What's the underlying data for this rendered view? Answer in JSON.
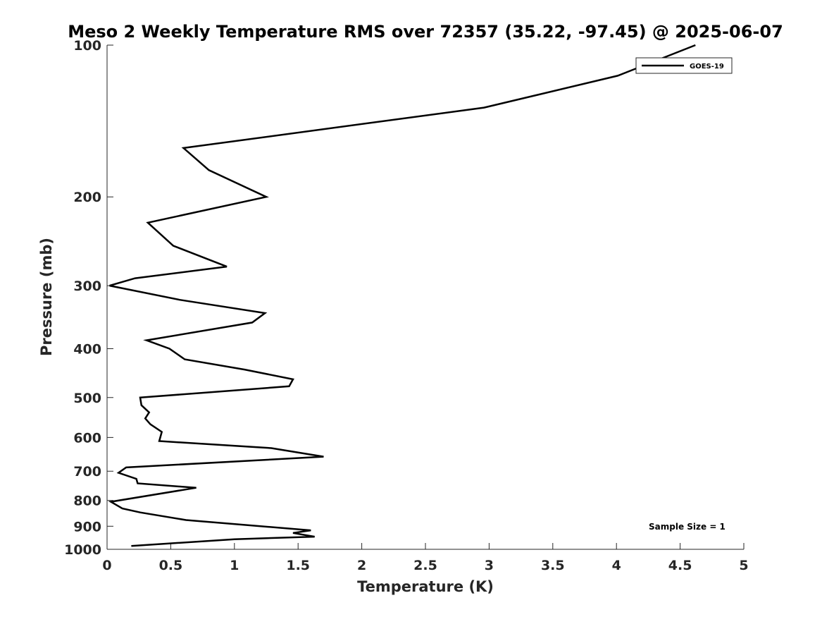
{
  "chart_data": {
    "type": "line",
    "title": "Meso 2 Weekly Temperature RMS over 72357 (35.22, -97.45) @ 2025-06-07",
    "xlabel": "Temperature (K)",
    "ylabel": "Pressure (mb)",
    "xlim": [
      0,
      5
    ],
    "ylim": [
      100,
      1000
    ],
    "y_scale": "log",
    "y_reversed": true,
    "x_ticks": [
      0,
      0.5,
      1,
      1.5,
      2,
      2.5,
      3,
      3.5,
      4,
      4.5,
      5
    ],
    "x_tick_labels": [
      "0",
      "0.5",
      "1",
      "1.5",
      "2",
      "2.5",
      "3",
      "3.5",
      "4",
      "4.5",
      "5"
    ],
    "y_ticks": [
      100,
      200,
      300,
      400,
      500,
      600,
      700,
      800,
      900,
      1000
    ],
    "y_tick_labels": [
      "100",
      "200",
      "300",
      "400",
      "500",
      "600",
      "700",
      "800",
      "900",
      "1000"
    ],
    "grid": false,
    "legend": {
      "position": "top-right",
      "entries": [
        "GOES-19"
      ]
    },
    "annotation": "Sample Size = 1",
    "series": [
      {
        "name": "GOES-19",
        "color": "#000000",
        "points": [
          [
            4.62,
            100
          ],
          [
            4.01,
            115
          ],
          [
            2.96,
            133
          ],
          [
            0.6,
            160
          ],
          [
            0.8,
            177
          ],
          [
            1.25,
            200
          ],
          [
            0.32,
            225
          ],
          [
            0.52,
            250
          ],
          [
            0.94,
            275
          ],
          [
            0.22,
            290
          ],
          [
            0.02,
            300
          ],
          [
            0.57,
            320
          ],
          [
            1.24,
            340
          ],
          [
            1.14,
            355
          ],
          [
            0.31,
            385
          ],
          [
            0.49,
            400
          ],
          [
            0.61,
            420
          ],
          [
            1.08,
            440
          ],
          [
            1.46,
            460
          ],
          [
            1.43,
            475
          ],
          [
            0.26,
            500
          ],
          [
            0.27,
            518
          ],
          [
            0.33,
            535
          ],
          [
            0.3,
            550
          ],
          [
            0.34,
            565
          ],
          [
            0.43,
            585
          ],
          [
            0.41,
            610
          ],
          [
            1.29,
            630
          ],
          [
            1.7,
            655
          ],
          [
            0.15,
            688
          ],
          [
            0.09,
            705
          ],
          [
            0.23,
            725
          ],
          [
            0.24,
            740
          ],
          [
            0.7,
            755
          ],
          [
            0.03,
            805
          ],
          [
            0.12,
            830
          ],
          [
            0.26,
            845
          ],
          [
            0.62,
            875
          ],
          [
            1.6,
            917
          ],
          [
            1.46,
            928
          ],
          [
            1.63,
            944
          ],
          [
            1.0,
            955
          ],
          [
            0.19,
            985
          ]
        ]
      }
    ]
  }
}
